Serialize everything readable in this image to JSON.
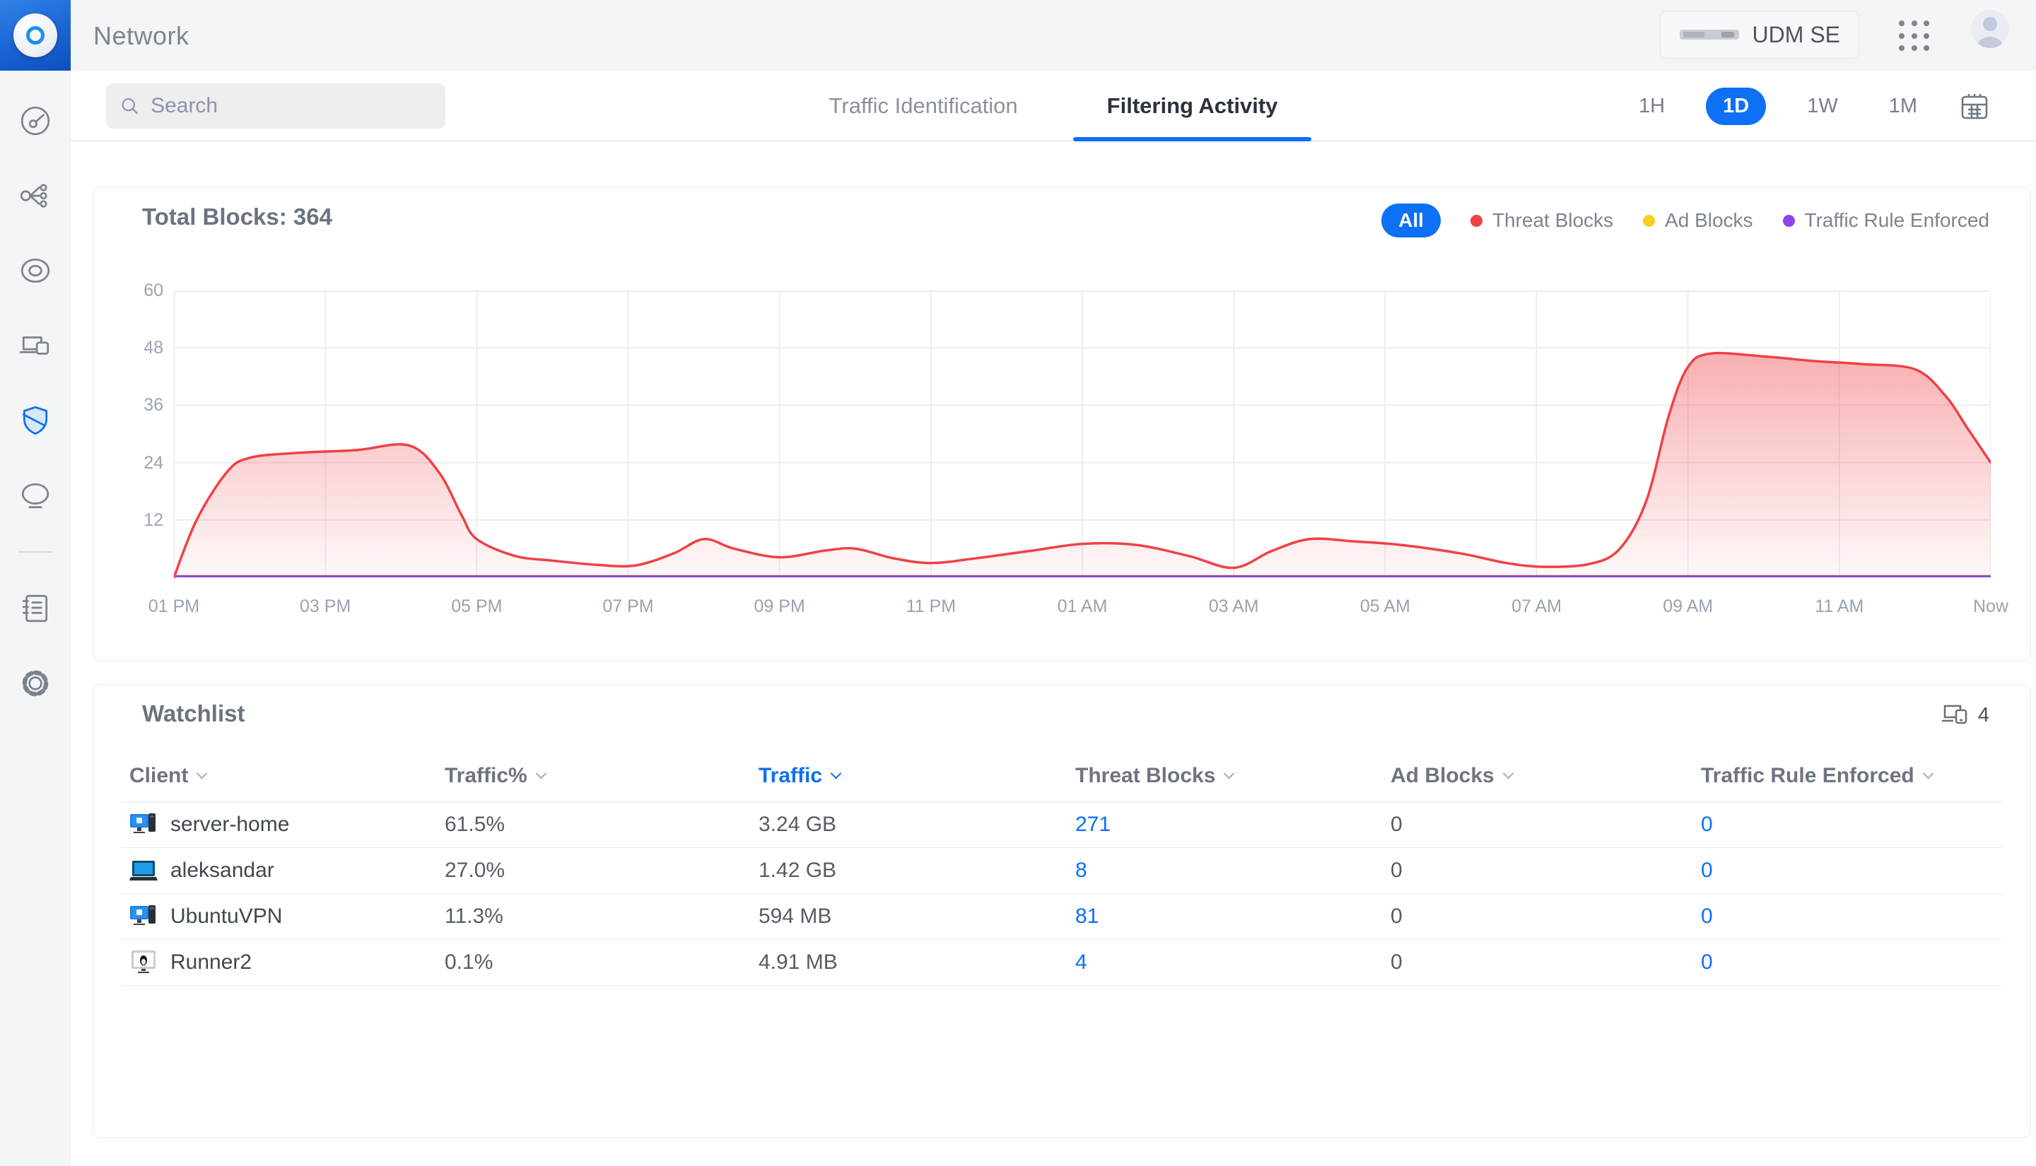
{
  "app": {
    "title": "Network"
  },
  "topbar": {
    "console_name": "UDM SE",
    "apps_icon": "apps-grid-icon",
    "avatar_icon": "user-avatar"
  },
  "toolbar": {
    "search_placeholder": "Search",
    "tabs": [
      {
        "label": "Traffic Identification",
        "active": false
      },
      {
        "label": "Filtering Activity",
        "active": true
      }
    ],
    "ranges": [
      {
        "label": "1H",
        "active": false
      },
      {
        "label": "1D",
        "active": true
      },
      {
        "label": "1W",
        "active": false
      },
      {
        "label": "1M",
        "active": false
      }
    ],
    "calendar_icon": "calendar-icon"
  },
  "colors": {
    "accent": "#0d70f5",
    "threat": "#ef4146",
    "ad": "#f5d01f",
    "rule": "#8d44ea"
  },
  "chart_card": {
    "title": "Total Blocks: 364",
    "filter_all_label": "All",
    "legend": [
      {
        "label": "Threat Blocks",
        "color": "#ef4146"
      },
      {
        "label": "Ad Blocks",
        "color": "#f5d01f"
      },
      {
        "label": "Traffic Rule Enforced",
        "color": "#8d44ea"
      }
    ]
  },
  "chart_data": {
    "type": "area",
    "title": "Total Blocks: 364",
    "total_blocks": 364,
    "x_ticks": [
      "01 PM",
      "03 PM",
      "05 PM",
      "07 PM",
      "09 PM",
      "11 PM",
      "01 AM",
      "03 AM",
      "05 AM",
      "07 AM",
      "09 AM",
      "11 AM",
      "Now"
    ],
    "y_ticks": [
      60,
      48,
      36,
      24,
      12
    ],
    "ylim": [
      0,
      60
    ],
    "x_range_hours": 24,
    "grid": true,
    "legend_position": "top-right",
    "series": [
      {
        "name": "Threat Blocks",
        "color": "#ef4146",
        "points": [
          [
            0,
            0
          ],
          [
            0.3,
            12
          ],
          [
            0.7,
            22
          ],
          [
            1,
            25
          ],
          [
            1.6,
            26
          ],
          [
            2.4,
            26.6
          ],
          [
            3.1,
            27.6
          ],
          [
            3.5,
            22
          ],
          [
            3.8,
            13
          ],
          [
            4,
            8
          ],
          [
            4.5,
            4.5
          ],
          [
            5,
            3.5
          ],
          [
            5.6,
            2.6
          ],
          [
            6.1,
            2.5
          ],
          [
            6.6,
            5
          ],
          [
            7,
            8
          ],
          [
            7.4,
            6
          ],
          [
            8,
            4.2
          ],
          [
            8.6,
            5.6
          ],
          [
            9,
            6
          ],
          [
            9.5,
            4
          ],
          [
            10,
            3
          ],
          [
            10.6,
            4
          ],
          [
            11.3,
            5.5
          ],
          [
            12,
            7
          ],
          [
            12.7,
            6.8
          ],
          [
            13.4,
            4.5
          ],
          [
            14,
            2
          ],
          [
            14.5,
            5.5
          ],
          [
            15,
            8
          ],
          [
            15.6,
            7.5
          ],
          [
            16.2,
            6.8
          ],
          [
            17,
            5
          ],
          [
            17.6,
            3
          ],
          [
            18.1,
            2.2
          ],
          [
            18.7,
            2.8
          ],
          [
            19.1,
            6
          ],
          [
            19.45,
            16
          ],
          [
            19.75,
            34
          ],
          [
            20,
            44
          ],
          [
            20.3,
            46.8
          ],
          [
            21,
            46.2
          ],
          [
            21.7,
            45.2
          ],
          [
            22.3,
            44.6
          ],
          [
            23,
            43.5
          ],
          [
            23.4,
            38
          ],
          [
            23.7,
            31
          ],
          [
            24,
            24
          ]
        ]
      },
      {
        "name": "Ad Blocks",
        "color": "#f5d01f",
        "points": [
          [
            0,
            0
          ],
          [
            24,
            0
          ]
        ]
      },
      {
        "name": "Traffic Rule Enforced",
        "color": "#8d44ea",
        "points": [
          [
            0,
            0
          ],
          [
            24,
            0
          ]
        ]
      }
    ]
  },
  "watchlist": {
    "title": "Watchlist",
    "device_count": "4",
    "device_count_icon": "devices-icon",
    "columns": [
      {
        "label": "Client",
        "sorted": false
      },
      {
        "label": "Traffic%",
        "sorted": false
      },
      {
        "label": "Traffic",
        "sorted": true
      },
      {
        "label": "Threat Blocks",
        "sorted": false
      },
      {
        "label": "Ad Blocks",
        "sorted": false
      },
      {
        "label": "Traffic Rule Enforced",
        "sorted": false
      }
    ],
    "rows": [
      {
        "client": "server-home",
        "icon": "desktop-tower-icon",
        "traffic_pct": "61.5%",
        "traffic": "3.24 GB",
        "threat_blocks": "271",
        "ad_blocks": "0",
        "traffic_rule": "0"
      },
      {
        "client": "aleksandar",
        "icon": "laptop-icon",
        "traffic_pct": "27.0%",
        "traffic": "1.42 GB",
        "threat_blocks": "8",
        "ad_blocks": "0",
        "traffic_rule": "0"
      },
      {
        "client": "UbuntuVPN",
        "icon": "desktop-tower-icon",
        "traffic_pct": "11.3%",
        "traffic": "594 MB",
        "threat_blocks": "81",
        "ad_blocks": "0",
        "traffic_rule": "0"
      },
      {
        "client": "Runner2",
        "icon": "monitor-linux-icon",
        "traffic_pct": "0.1%",
        "traffic": "4.91 MB",
        "threat_blocks": "4",
        "ad_blocks": "0",
        "traffic_rule": "0"
      }
    ]
  },
  "sidebar": {
    "items": [
      "dashboard",
      "topology",
      "unifi-devices",
      "client-devices",
      "security",
      "wifi"
    ],
    "secondary_items": [
      "system-log",
      "settings"
    ]
  }
}
